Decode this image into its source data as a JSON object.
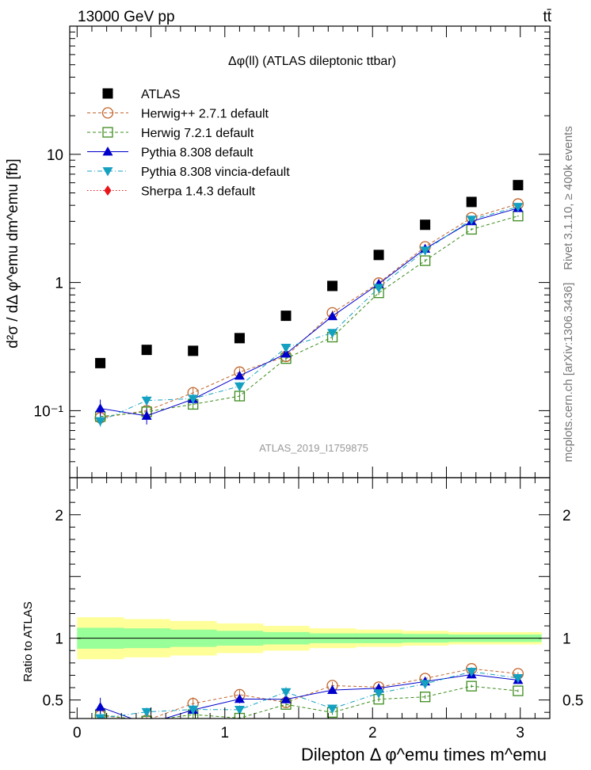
{
  "header": {
    "energy_label": "13000 GeV pp",
    "process_label": "tt̄"
  },
  "side_labels": {
    "rivet": "Rivet 3.1.10, ≥ 400k events",
    "mcplots": "mcplots.cern.ch [arXiv:1306.3436]"
  },
  "chart_data": [
    {
      "type": "scatter",
      "title": "Δφ(ll) (ATLAS dileptonic ttbar)",
      "watermark": "ATLAS_2019_I1759875",
      "ylabel": "d²σ / dΔ φ^emu dm^emu [fb]",
      "yscale": "log",
      "ylim": [
        0.03,
        100
      ],
      "xlim": [
        -0.05,
        3.2
      ],
      "x": [
        0.157,
        0.471,
        0.785,
        1.1,
        1.414,
        1.728,
        2.042,
        2.356,
        2.67,
        2.985
      ],
      "x_edges": [
        0,
        0.314,
        0.628,
        0.942,
        1.257,
        1.571,
        1.885,
        2.199,
        2.513,
        2.827,
        3.142
      ],
      "y_tick_labels": [
        "10⁻¹",
        "1",
        "10"
      ],
      "legend_position": "top-left",
      "series": [
        {
          "name": "ATLAS",
          "marker": "square",
          "color": "#000000",
          "values": [
            0.235,
            0.298,
            0.293,
            0.368,
            0.55,
            0.94,
            1.64,
            2.82,
            4.25,
            5.75
          ]
        },
        {
          "name": "Herwig++ 2.7.1 default",
          "marker": "circle-open",
          "color": "#c0642a",
          "line": "dashed",
          "values": [
            0.088,
            0.1,
            0.138,
            0.2,
            0.265,
            0.58,
            0.99,
            1.9,
            3.2,
            4.1
          ],
          "errors": [
            0.01,
            0.01,
            0.015,
            0.015,
            0.015,
            0.025,
            0.03,
            0.04,
            0.05,
            0.06
          ]
        },
        {
          "name": "Herwig 7.2.1 default",
          "marker": "square-open",
          "color": "#3d8c1c",
          "line": "dashed",
          "values": [
            0.09,
            0.098,
            0.112,
            0.13,
            0.255,
            0.375,
            0.83,
            1.48,
            2.6,
            3.3
          ],
          "errors": [
            0.008,
            0.008,
            0.01,
            0.01,
            0.012,
            0.02,
            0.03,
            0.04,
            0.05,
            0.05
          ]
        },
        {
          "name": "Pythia 8.308 default",
          "marker": "triangle-up",
          "color": "#0000cc",
          "line": "solid",
          "values": [
            0.104,
            0.091,
            0.123,
            0.187,
            0.278,
            0.545,
            0.975,
            1.83,
            3.0,
            3.8
          ],
          "errors": [
            0.018,
            0.013,
            0.01,
            0.012,
            0.012,
            0.03,
            0.04,
            0.05,
            0.06,
            0.06
          ]
        },
        {
          "name": "Pythia 8.308 vincia-default",
          "marker": "triangle-down",
          "color": "#14a0c0",
          "line": "dashdot",
          "values": [
            0.083,
            0.12,
            0.124,
            0.155,
            0.31,
            0.405,
            0.91,
            1.78,
            3.1,
            3.9
          ],
          "errors": [
            0.008,
            0.012,
            0.01,
            0.012,
            0.02,
            0.025,
            0.04,
            0.05,
            0.06,
            0.06
          ]
        },
        {
          "name": "Sherpa 1.4.3 default",
          "marker": "diamond",
          "color": "#e8161a",
          "line": "dotted",
          "values": []
        }
      ]
    },
    {
      "type": "scatter",
      "ylabel": "Ratio to ATLAS",
      "xlabel": "Dilepton Δ φ^emu times m^emu",
      "ylim": [
        0.35,
        2.3
      ],
      "xlim": [
        -0.05,
        3.2
      ],
      "x_tick_labels": [
        "0",
        "1",
        "2",
        "3"
      ],
      "y_tick_labels": [
        "0.5",
        "1",
        "2"
      ],
      "x": [
        0.157,
        0.471,
        0.785,
        1.1,
        1.414,
        1.728,
        2.042,
        2.356,
        2.67,
        2.985
      ],
      "bands": {
        "edges": [
          0,
          0.314,
          0.628,
          0.942,
          1.257,
          1.571,
          1.885,
          2.199,
          2.513,
          2.827,
          3.142
        ],
        "inner": [
          0.085,
          0.08,
          0.07,
          0.06,
          0.05,
          0.04,
          0.04,
          0.035,
          0.03,
          0.03
        ],
        "outer": [
          0.17,
          0.155,
          0.14,
          0.12,
          0.1,
          0.08,
          0.07,
          0.06,
          0.05,
          0.05
        ]
      },
      "series": [
        {
          "name": "Herwig++ 2.7.1 default",
          "values": [
            0.374,
            0.336,
            0.471,
            0.543,
            0.48,
            0.617,
            0.604,
            0.674,
            0.753,
            0.713
          ],
          "errors": [
            0.04,
            0.03,
            0.05,
            0.04,
            0.03,
            0.03,
            0.02,
            0.015,
            0.012,
            0.012
          ]
        },
        {
          "name": "Herwig 7.2.1 default",
          "values": [
            0.383,
            0.329,
            0.382,
            0.353,
            0.464,
            0.399,
            0.506,
            0.525,
            0.612,
            0.574
          ],
          "errors": [
            0.035,
            0.025,
            0.035,
            0.03,
            0.025,
            0.02,
            0.02,
            0.015,
            0.012,
            0.01
          ]
        },
        {
          "name": "Pythia 8.308 default",
          "values": [
            0.443,
            0.305,
            0.42,
            0.508,
            0.505,
            0.58,
            0.595,
            0.649,
            0.706,
            0.661
          ],
          "errors": [
            0.075,
            0.04,
            0.035,
            0.035,
            0.025,
            0.03,
            0.025,
            0.015,
            0.012,
            0.012
          ]
        },
        {
          "name": "Pythia 8.308 vincia-default",
          "values": [
            0.353,
            0.403,
            0.423,
            0.421,
            0.564,
            0.431,
            0.555,
            0.631,
            0.729,
            0.678
          ],
          "errors": [
            0.035,
            0.035,
            0.035,
            0.035,
            0.04,
            0.025,
            0.025,
            0.015,
            0.012,
            0.012
          ]
        },
        {
          "name": "Sherpa 1.4.3 default",
          "values": []
        }
      ]
    }
  ]
}
